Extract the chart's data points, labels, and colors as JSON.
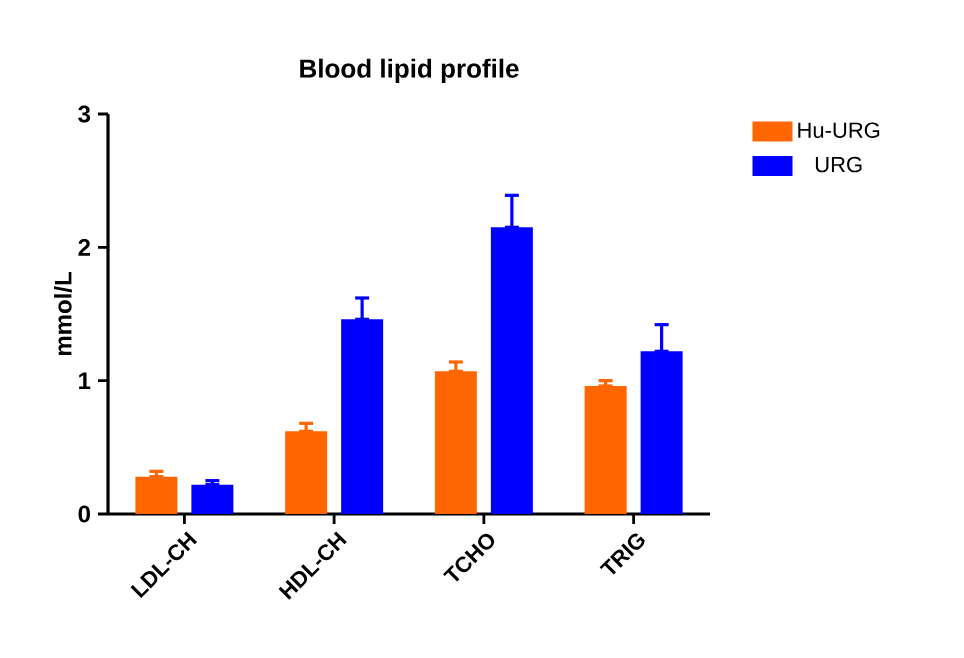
{
  "chart_data": {
    "type": "bar",
    "title": "Blood lipid profile",
    "ylabel": "mmol/L",
    "categories": [
      "LDL-CH",
      "HDL-CH",
      "TCHO",
      "TRIG"
    ],
    "series": [
      {
        "name": "Hu-URG",
        "color": "#ff6600",
        "values": [
          0.28,
          0.62,
          1.07,
          0.96
        ],
        "errors": [
          [
            0.28,
            0.32
          ],
          [
            0.62,
            0.68
          ],
          [
            1.07,
            1.14
          ],
          [
            0.96,
            1.0
          ]
        ]
      },
      {
        "name": "URG",
        "color": "#0000ff",
        "values": [
          0.22,
          1.46,
          2.15,
          1.22
        ],
        "errors": [
          [
            0.22,
            0.25
          ],
          [
            1.46,
            1.62
          ],
          [
            2.15,
            2.39
          ],
          [
            1.22,
            1.42
          ]
        ]
      }
    ],
    "ylim": [
      0,
      3
    ],
    "yticks": [
      0,
      1,
      2,
      3
    ],
    "grid": false,
    "legend": "top right"
  }
}
